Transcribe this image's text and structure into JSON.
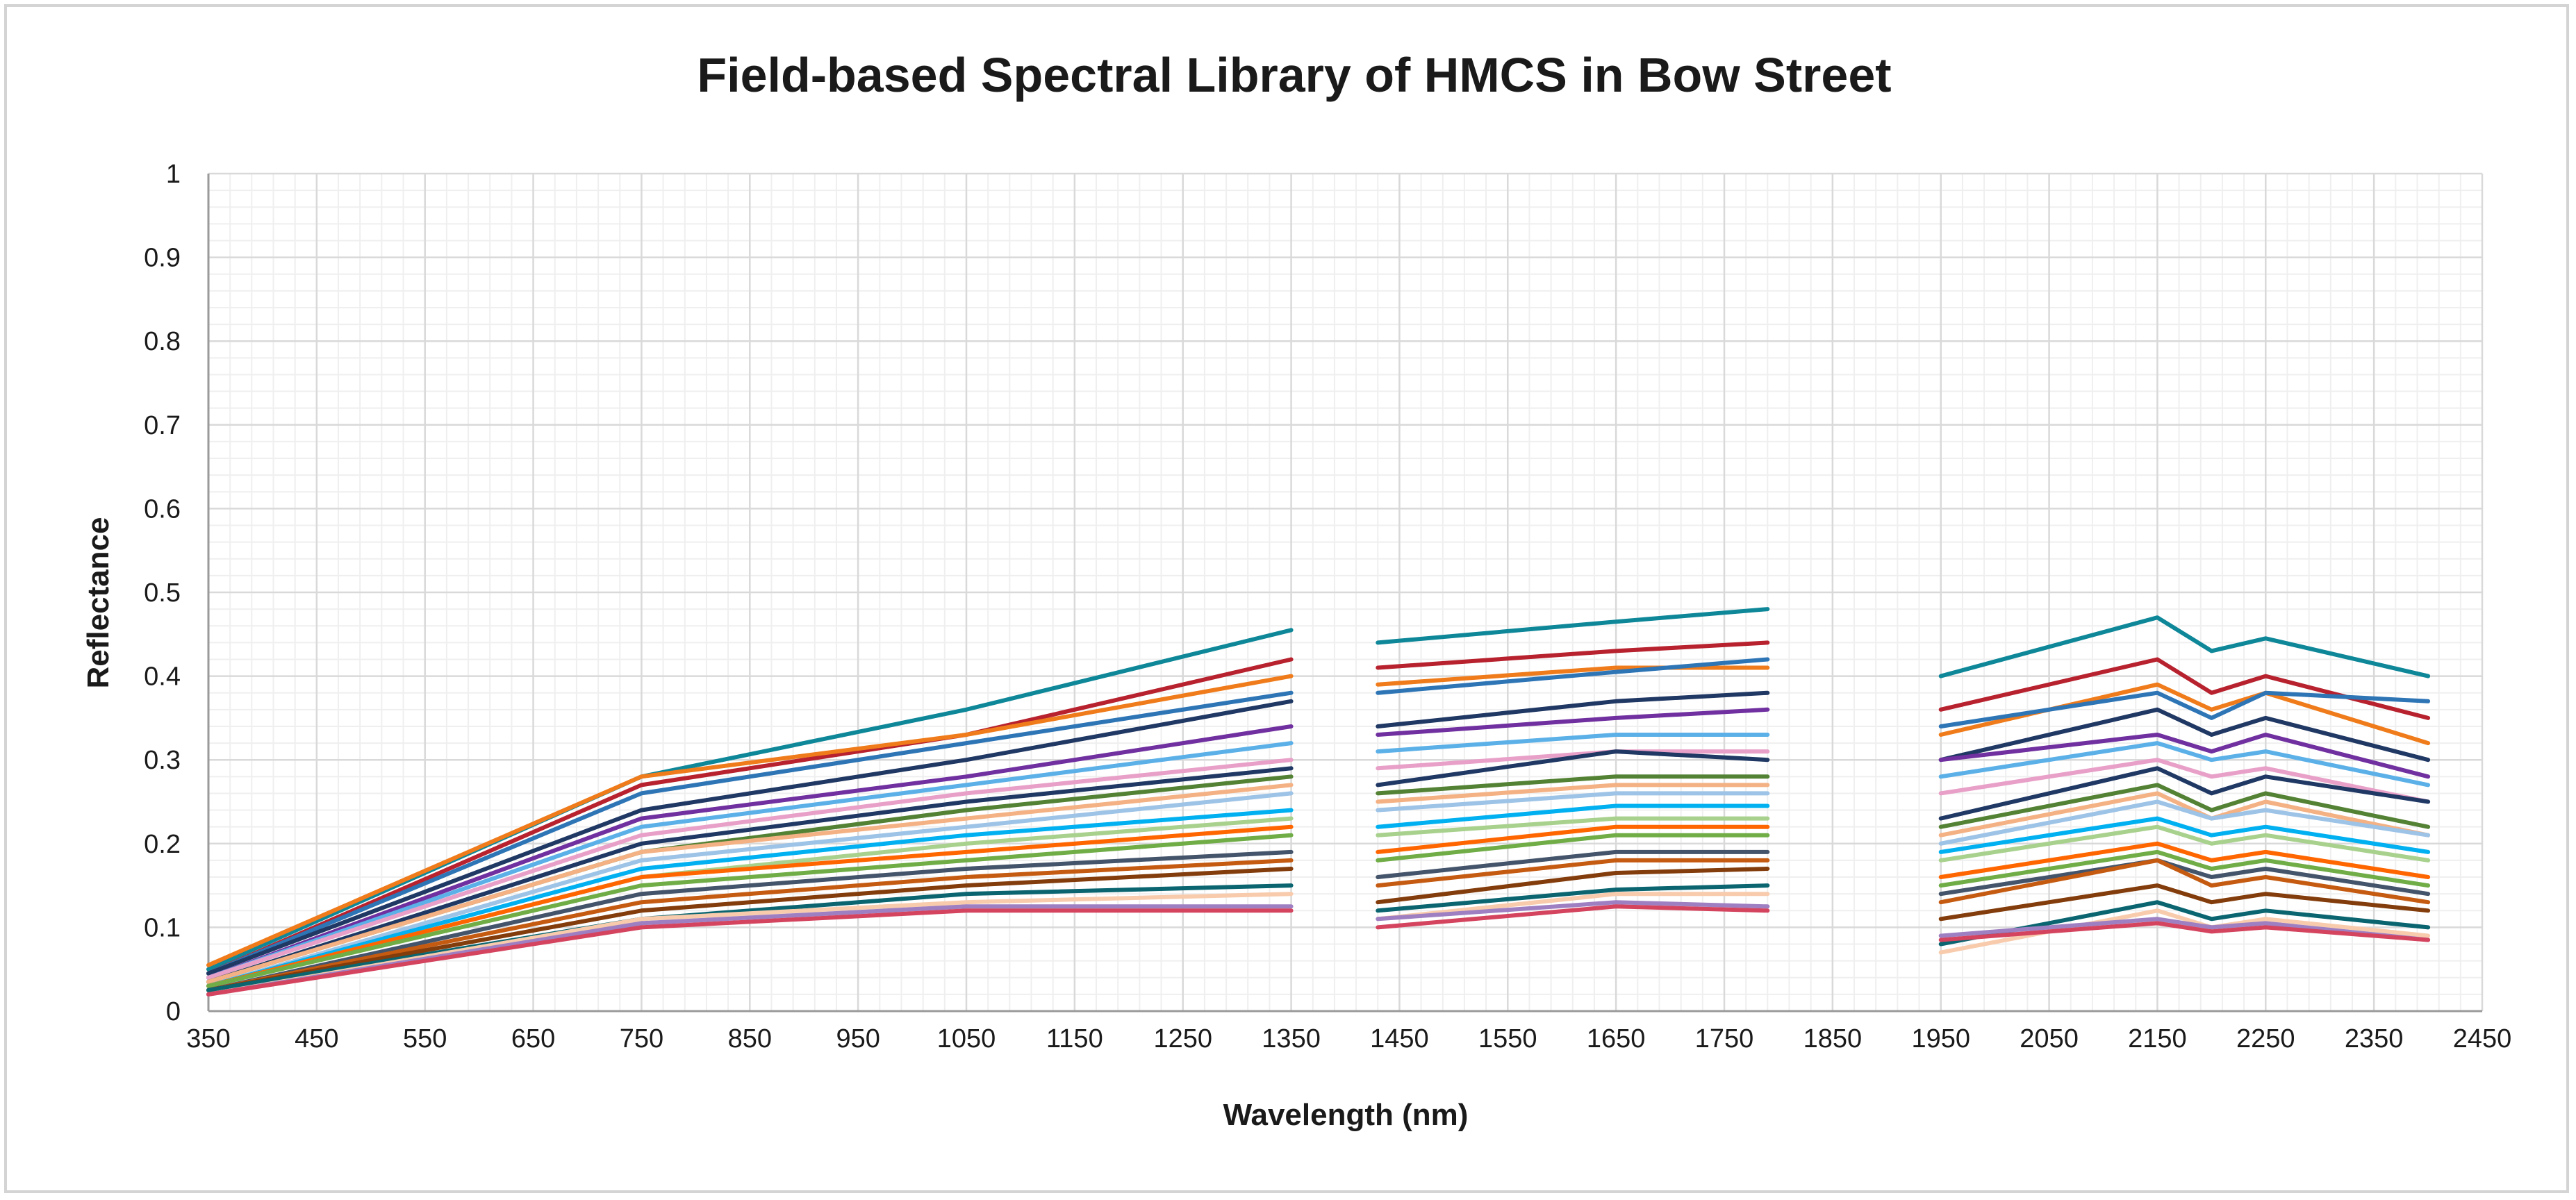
{
  "chart_data": {
    "type": "line",
    "title": "Field-based Spectral Library of HMCS in Bow Street",
    "xlabel": "Wavelength (nm)",
    "ylabel": "Reflectance",
    "xlim": [
      350,
      2450
    ],
    "ylim": [
      0,
      1
    ],
    "x_ticks": [
      "350",
      "450",
      "550",
      "650",
      "750",
      "850",
      "950",
      "1050",
      "1150",
      "1250",
      "1350",
      "1450",
      "1550",
      "1650",
      "1750",
      "1850",
      "1950",
      "2050",
      "2150",
      "2250",
      "2350",
      "2450"
    ],
    "y_ticks": [
      "0",
      "0.1",
      "0.2",
      "0.3",
      "0.4",
      "0.5",
      "0.6",
      "0.7",
      "0.8",
      "0.9",
      "1"
    ],
    "grid": true,
    "legend": "none",
    "gaps_nm": [
      [
        1350,
        1430
      ],
      [
        1790,
        1950
      ]
    ],
    "series": [
      {
        "color": "#0e8799",
        "points": [
          [
            350,
            0.05
          ],
          [
            750,
            0.28
          ],
          [
            1050,
            0.36
          ],
          [
            1350,
            0.455
          ],
          [
            1430,
            0.44
          ],
          [
            1650,
            0.465
          ],
          [
            1790,
            0.48
          ],
          [
            1950,
            0.4
          ],
          [
            2150,
            0.47
          ],
          [
            2200,
            0.43
          ],
          [
            2250,
            0.445
          ],
          [
            2400,
            0.4
          ]
        ]
      },
      {
        "color": "#b7222e",
        "points": [
          [
            350,
            0.045
          ],
          [
            750,
            0.27
          ],
          [
            1050,
            0.33
          ],
          [
            1350,
            0.42
          ],
          [
            1430,
            0.41
          ],
          [
            1650,
            0.43
          ],
          [
            1790,
            0.44
          ],
          [
            1950,
            0.36
          ],
          [
            2150,
            0.42
          ],
          [
            2200,
            0.38
          ],
          [
            2250,
            0.4
          ],
          [
            2400,
            0.35
          ]
        ]
      },
      {
        "color": "#ef7b1a",
        "points": [
          [
            350,
            0.055
          ],
          [
            750,
            0.28
          ],
          [
            1050,
            0.33
          ],
          [
            1350,
            0.4
          ],
          [
            1430,
            0.39
          ],
          [
            1650,
            0.41
          ],
          [
            1790,
            0.41
          ],
          [
            1950,
            0.33
          ],
          [
            2150,
            0.39
          ],
          [
            2200,
            0.36
          ],
          [
            2250,
            0.38
          ],
          [
            2400,
            0.32
          ]
        ]
      },
      {
        "color": "#2e75b6",
        "points": [
          [
            350,
            0.045
          ],
          [
            750,
            0.26
          ],
          [
            1050,
            0.32
          ],
          [
            1350,
            0.38
          ],
          [
            1430,
            0.38
          ],
          [
            1650,
            0.405
          ],
          [
            1790,
            0.42
          ],
          [
            1950,
            0.34
          ],
          [
            2150,
            0.38
          ],
          [
            2200,
            0.35
          ],
          [
            2250,
            0.38
          ],
          [
            2400,
            0.37
          ]
        ]
      },
      {
        "color": "#203864",
        "points": [
          [
            350,
            0.045
          ],
          [
            750,
            0.24
          ],
          [
            1050,
            0.3
          ],
          [
            1350,
            0.37
          ],
          [
            1430,
            0.34
          ],
          [
            1650,
            0.37
          ],
          [
            1790,
            0.38
          ],
          [
            1950,
            0.3
          ],
          [
            2150,
            0.36
          ],
          [
            2200,
            0.33
          ],
          [
            2250,
            0.35
          ],
          [
            2400,
            0.3
          ]
        ]
      },
      {
        "color": "#7030a0",
        "points": [
          [
            350,
            0.04
          ],
          [
            750,
            0.23
          ],
          [
            1050,
            0.28
          ],
          [
            1350,
            0.34
          ],
          [
            1430,
            0.33
          ],
          [
            1650,
            0.35
          ],
          [
            1790,
            0.36
          ],
          [
            1950,
            0.3
          ],
          [
            2150,
            0.33
          ],
          [
            2200,
            0.31
          ],
          [
            2250,
            0.33
          ],
          [
            2400,
            0.28
          ]
        ]
      },
      {
        "color": "#5bb0e8",
        "points": [
          [
            350,
            0.04
          ],
          [
            750,
            0.22
          ],
          [
            1050,
            0.27
          ],
          [
            1350,
            0.32
          ],
          [
            1430,
            0.31
          ],
          [
            1650,
            0.33
          ],
          [
            1790,
            0.33
          ],
          [
            1950,
            0.28
          ],
          [
            2150,
            0.32
          ],
          [
            2200,
            0.3
          ],
          [
            2250,
            0.31
          ],
          [
            2400,
            0.27
          ]
        ]
      },
      {
        "color": "#e8a0c8",
        "points": [
          [
            350,
            0.04
          ],
          [
            750,
            0.21
          ],
          [
            1050,
            0.26
          ],
          [
            1350,
            0.3
          ],
          [
            1430,
            0.29
          ],
          [
            1650,
            0.31
          ],
          [
            1790,
            0.31
          ],
          [
            1950,
            0.26
          ],
          [
            2150,
            0.3
          ],
          [
            2200,
            0.28
          ],
          [
            2250,
            0.29
          ],
          [
            2400,
            0.25
          ]
        ]
      },
      {
        "color": "#1f3864",
        "points": [
          [
            350,
            0.035
          ],
          [
            750,
            0.2
          ],
          [
            1050,
            0.25
          ],
          [
            1350,
            0.29
          ],
          [
            1430,
            0.27
          ],
          [
            1650,
            0.31
          ],
          [
            1790,
            0.3
          ],
          [
            1950,
            0.23
          ],
          [
            2150,
            0.29
          ],
          [
            2200,
            0.26
          ],
          [
            2250,
            0.28
          ],
          [
            2400,
            0.25
          ]
        ]
      },
      {
        "color": "#548235",
        "points": [
          [
            350,
            0.035
          ],
          [
            750,
            0.19
          ],
          [
            1050,
            0.24
          ],
          [
            1350,
            0.28
          ],
          [
            1430,
            0.26
          ],
          [
            1650,
            0.28
          ],
          [
            1790,
            0.28
          ],
          [
            1950,
            0.22
          ],
          [
            2150,
            0.27
          ],
          [
            2200,
            0.24
          ],
          [
            2250,
            0.26
          ],
          [
            2400,
            0.22
          ]
        ]
      },
      {
        "color": "#f4b183",
        "points": [
          [
            350,
            0.035
          ],
          [
            750,
            0.19
          ],
          [
            1050,
            0.23
          ],
          [
            1350,
            0.27
          ],
          [
            1430,
            0.25
          ],
          [
            1650,
            0.27
          ],
          [
            1790,
            0.27
          ],
          [
            1950,
            0.21
          ],
          [
            2150,
            0.26
          ],
          [
            2200,
            0.23
          ],
          [
            2250,
            0.25
          ],
          [
            2400,
            0.21
          ]
        ]
      },
      {
        "color": "#9dc3e6",
        "points": [
          [
            350,
            0.03
          ],
          [
            750,
            0.18
          ],
          [
            1050,
            0.22
          ],
          [
            1350,
            0.26
          ],
          [
            1430,
            0.24
          ],
          [
            1650,
            0.26
          ],
          [
            1790,
            0.26
          ],
          [
            1950,
            0.2
          ],
          [
            2150,
            0.25
          ],
          [
            2200,
            0.23
          ],
          [
            2250,
            0.24
          ],
          [
            2400,
            0.21
          ]
        ]
      },
      {
        "color": "#00b0f0",
        "points": [
          [
            350,
            0.03
          ],
          [
            750,
            0.17
          ],
          [
            1050,
            0.21
          ],
          [
            1350,
            0.24
          ],
          [
            1430,
            0.22
          ],
          [
            1650,
            0.245
          ],
          [
            1790,
            0.245
          ],
          [
            1950,
            0.19
          ],
          [
            2150,
            0.23
          ],
          [
            2200,
            0.21
          ],
          [
            2250,
            0.22
          ],
          [
            2400,
            0.19
          ]
        ]
      },
      {
        "color": "#a9d18e",
        "points": [
          [
            350,
            0.03
          ],
          [
            750,
            0.16
          ],
          [
            1050,
            0.2
          ],
          [
            1350,
            0.23
          ],
          [
            1430,
            0.21
          ],
          [
            1650,
            0.23
          ],
          [
            1790,
            0.23
          ],
          [
            1950,
            0.18
          ],
          [
            2150,
            0.22
          ],
          [
            2200,
            0.2
          ],
          [
            2250,
            0.21
          ],
          [
            2400,
            0.18
          ]
        ]
      },
      {
        "color": "#ff6600",
        "points": [
          [
            350,
            0.03
          ],
          [
            750,
            0.16
          ],
          [
            1050,
            0.19
          ],
          [
            1350,
            0.22
          ],
          [
            1430,
            0.19
          ],
          [
            1650,
            0.22
          ],
          [
            1790,
            0.22
          ],
          [
            1950,
            0.16
          ],
          [
            2150,
            0.2
          ],
          [
            2200,
            0.18
          ],
          [
            2250,
            0.19
          ],
          [
            2400,
            0.16
          ]
        ]
      },
      {
        "color": "#70ad47",
        "points": [
          [
            350,
            0.03
          ],
          [
            750,
            0.15
          ],
          [
            1050,
            0.18
          ],
          [
            1350,
            0.21
          ],
          [
            1430,
            0.18
          ],
          [
            1650,
            0.21
          ],
          [
            1790,
            0.21
          ],
          [
            1950,
            0.15
          ],
          [
            2150,
            0.19
          ],
          [
            2200,
            0.17
          ],
          [
            2250,
            0.18
          ],
          [
            2400,
            0.15
          ]
        ]
      },
      {
        "color": "#44546a",
        "points": [
          [
            350,
            0.025
          ],
          [
            750,
            0.14
          ],
          [
            1050,
            0.17
          ],
          [
            1350,
            0.19
          ],
          [
            1430,
            0.16
          ],
          [
            1650,
            0.19
          ],
          [
            1790,
            0.19
          ],
          [
            1950,
            0.14
          ],
          [
            2150,
            0.18
          ],
          [
            2200,
            0.16
          ],
          [
            2250,
            0.17
          ],
          [
            2400,
            0.14
          ]
        ]
      },
      {
        "color": "#c55a11",
        "points": [
          [
            350,
            0.025
          ],
          [
            750,
            0.13
          ],
          [
            1050,
            0.16
          ],
          [
            1350,
            0.18
          ],
          [
            1430,
            0.15
          ],
          [
            1650,
            0.18
          ],
          [
            1790,
            0.18
          ],
          [
            1950,
            0.13
          ],
          [
            2150,
            0.18
          ],
          [
            2200,
            0.15
          ],
          [
            2250,
            0.16
          ],
          [
            2400,
            0.13
          ]
        ]
      },
      {
        "color": "#833c0b",
        "points": [
          [
            350,
            0.025
          ],
          [
            750,
            0.12
          ],
          [
            1050,
            0.15
          ],
          [
            1350,
            0.17
          ],
          [
            1430,
            0.13
          ],
          [
            1650,
            0.165
          ],
          [
            1790,
            0.17
          ],
          [
            1950,
            0.11
          ],
          [
            2150,
            0.15
          ],
          [
            2200,
            0.13
          ],
          [
            2250,
            0.14
          ],
          [
            2400,
            0.12
          ]
        ]
      },
      {
        "color": "#0a6570",
        "points": [
          [
            350,
            0.025
          ],
          [
            750,
            0.11
          ],
          [
            1050,
            0.14
          ],
          [
            1350,
            0.15
          ],
          [
            1430,
            0.12
          ],
          [
            1650,
            0.145
          ],
          [
            1790,
            0.15
          ],
          [
            1950,
            0.08
          ],
          [
            2150,
            0.13
          ],
          [
            2200,
            0.11
          ],
          [
            2250,
            0.12
          ],
          [
            2400,
            0.1
          ]
        ]
      },
      {
        "color": "#f8cbad",
        "points": [
          [
            350,
            0.02
          ],
          [
            750,
            0.11
          ],
          [
            1050,
            0.13
          ],
          [
            1350,
            0.14
          ],
          [
            1430,
            0.11
          ],
          [
            1650,
            0.14
          ],
          [
            1790,
            0.14
          ],
          [
            1950,
            0.07
          ],
          [
            2150,
            0.12
          ],
          [
            2200,
            0.1
          ],
          [
            2250,
            0.11
          ],
          [
            2400,
            0.09
          ]
        ]
      },
      {
        "color": "#9e7fc2",
        "points": [
          [
            350,
            0.02
          ],
          [
            750,
            0.105
          ],
          [
            1050,
            0.125
          ],
          [
            1350,
            0.125
          ],
          [
            1430,
            0.11
          ],
          [
            1650,
            0.13
          ],
          [
            1790,
            0.125
          ],
          [
            1950,
            0.09
          ],
          [
            2150,
            0.11
          ],
          [
            2200,
            0.1
          ],
          [
            2250,
            0.105
          ],
          [
            2400,
            0.085
          ]
        ]
      },
      {
        "color": "#d4445e",
        "points": [
          [
            350,
            0.02
          ],
          [
            750,
            0.1
          ],
          [
            1050,
            0.12
          ],
          [
            1350,
            0.12
          ],
          [
            1430,
            0.1
          ],
          [
            1650,
            0.125
          ],
          [
            1790,
            0.12
          ],
          [
            1950,
            0.085
          ],
          [
            2150,
            0.105
          ],
          [
            2200,
            0.095
          ],
          [
            2250,
            0.1
          ],
          [
            2400,
            0.085
          ]
        ]
      }
    ]
  }
}
